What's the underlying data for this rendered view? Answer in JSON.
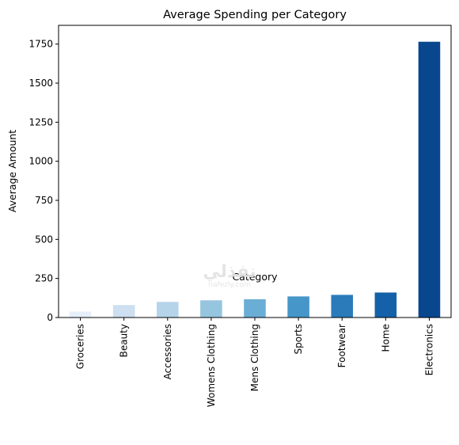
{
  "watermark": {
    "main": "نفذلي",
    "sub": "nafezly.com"
  },
  "chart_data": {
    "type": "bar",
    "title": "Average Spending per Category",
    "xlabel": "Category",
    "ylabel": "Average Amount",
    "categories": [
      "Groceries",
      "Beauty",
      "Accessories",
      "Womens Clothing",
      "Mens Clothing",
      "Sports",
      "Footwear",
      "Home",
      "Electronics"
    ],
    "values": [
      38,
      80,
      100,
      110,
      117,
      135,
      145,
      160,
      1765
    ],
    "colors": [
      "#e6eff9",
      "#cddff0",
      "#b5d4e9",
      "#95c5df",
      "#6aaed6",
      "#4696c9",
      "#2b7bba",
      "#1561a9",
      "#08468e"
    ],
    "ylim": [
      0,
      1870
    ],
    "yticks": [
      0,
      250,
      500,
      750,
      1000,
      1250,
      1500,
      1750
    ],
    "grid": false,
    "legend": "none"
  }
}
